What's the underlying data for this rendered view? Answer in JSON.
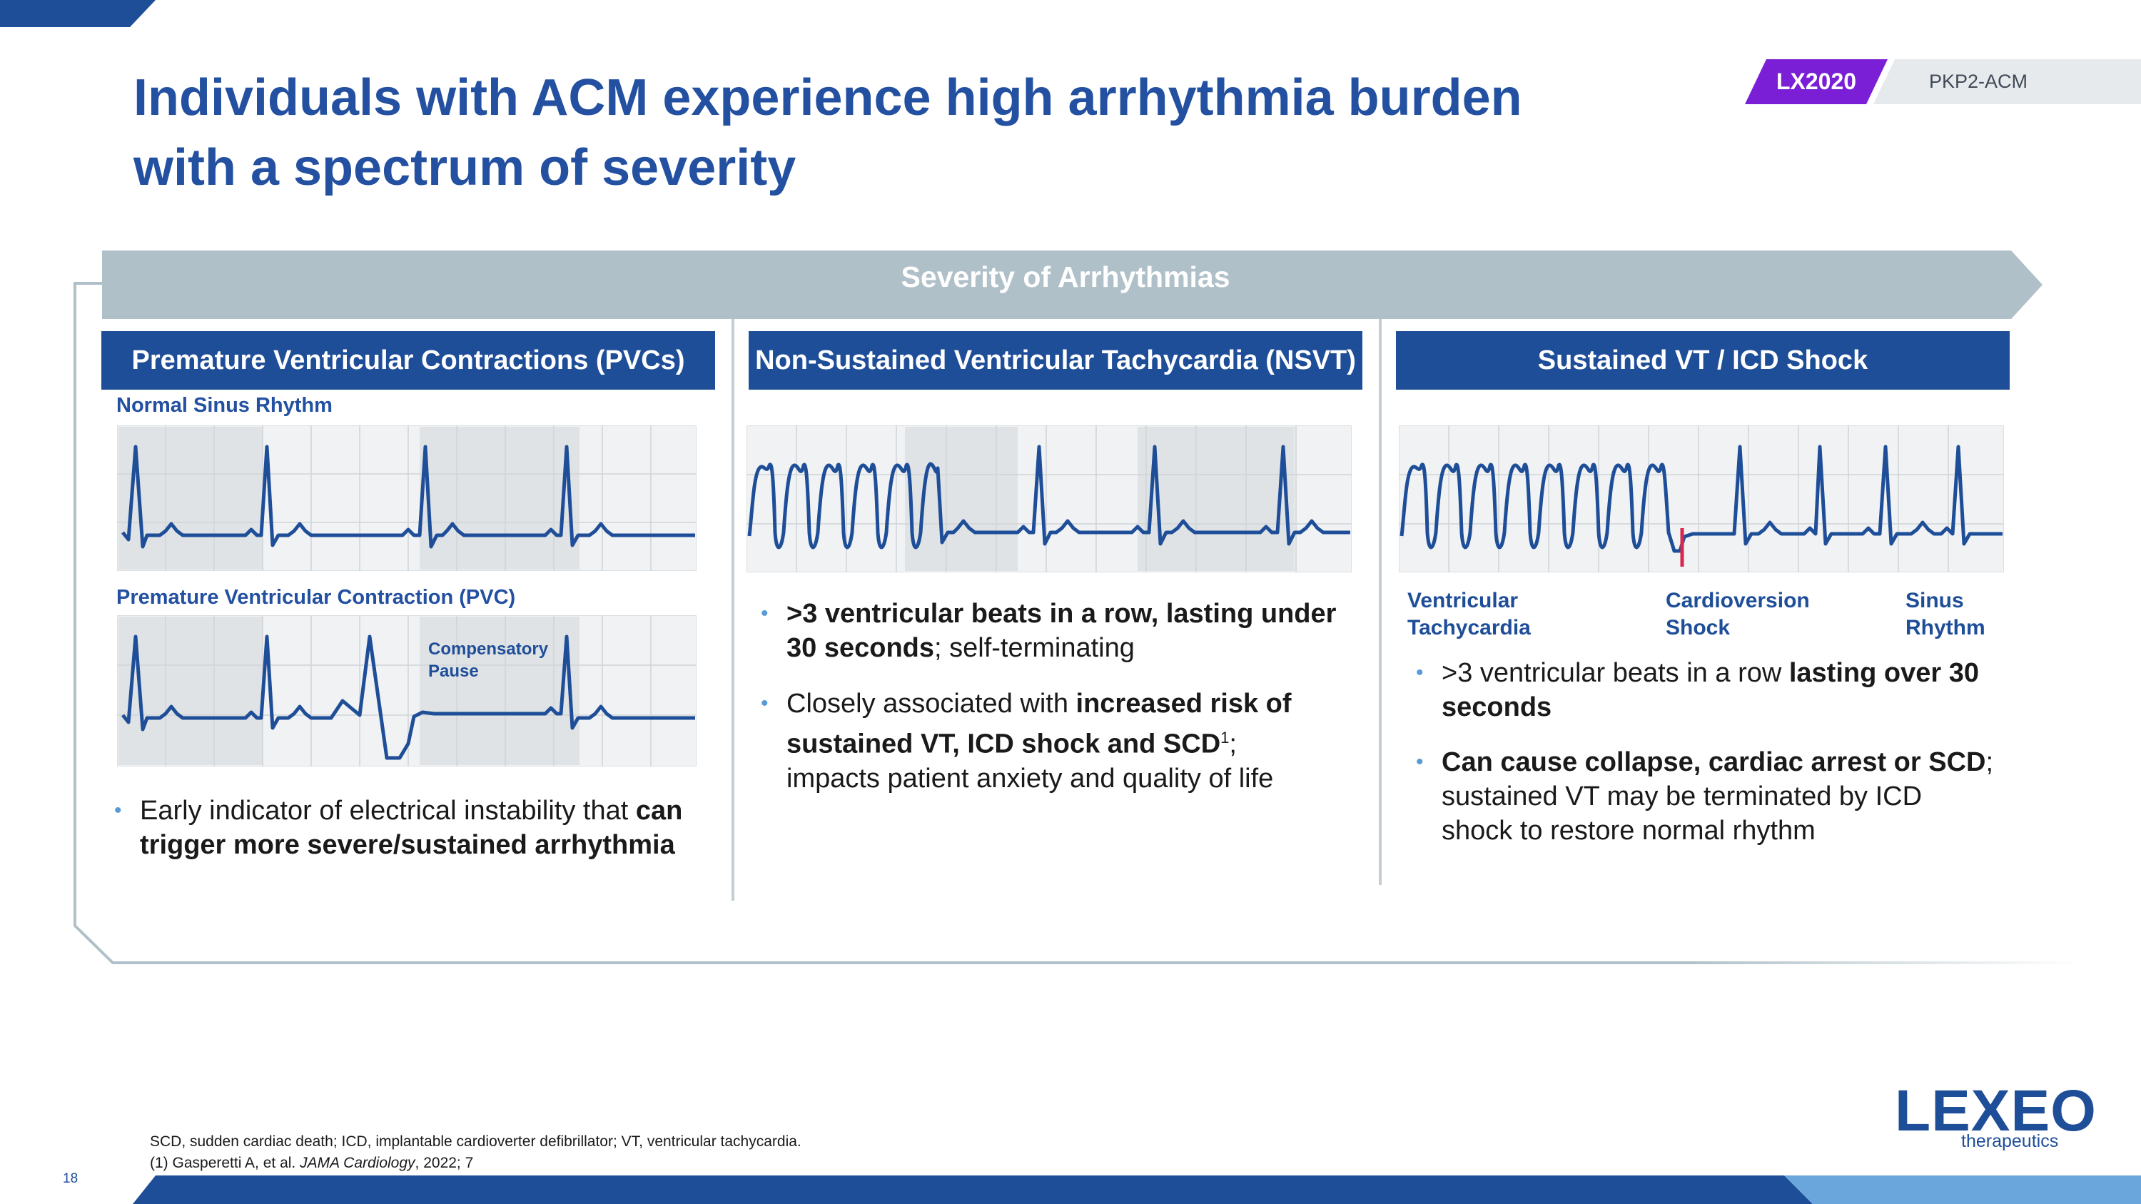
{
  "title_line1": "Individuals with ACM experience high arrhythmia burden",
  "title_line2": "with a spectrum of severity",
  "tag_program": "LX2020",
  "tag_indication": "PKP2-ACM",
  "banner": "Severity of Arrhythmias",
  "columns": [
    {
      "header": "Premature Ventricular Contractions (PVCs)",
      "strip1_label": "Normal Sinus Rhythm",
      "strip2_label": "Premature Ventricular Contraction (PVC)",
      "pause_label_1": "Compensatory",
      "pause_label_2": "Pause",
      "bullet": {
        "t1": "Early indicator of electrical instability that ",
        "b1": "can trigger more severe/sustained arrhythmia"
      }
    },
    {
      "header": "Non-Sustained Ventricular Tachycardia (NSVT)",
      "bullet1": {
        "b1": ">3 ventricular beats in a row, lasting under 30 seconds",
        "t1": "; self-terminating"
      },
      "bullet2": {
        "t1": "Closely associated with ",
        "b1": "increased risk of sustained VT, ICD shock and SCD",
        "sup": "1",
        "t2": "; impacts patient anxiety and quality of life"
      }
    },
    {
      "header": "Sustained VT / ICD Shock",
      "cap_vt_1": "Ventricular",
      "cap_vt_2": "Tachycardia",
      "cap_cv_1": "Cardioversion",
      "cap_cv_2": "Shock",
      "cap_sr_1": "Sinus",
      "cap_sr_2": "Rhythm",
      "bullet1": {
        "t1": ">3 ventricular beats in a row ",
        "b1": "lasting over 30 seconds"
      },
      "bullet2": {
        "b1": "Can cause collapse, cardiac arrest or SCD",
        "t1": "; sustained VT may be terminated by ICD shock to restore normal rhythm"
      }
    }
  ],
  "footnote_line1": "SCD, sudden cardiac death; ICD, implantable cardioverter defibrillator; VT, ventricular tachycardia.",
  "footnote_line2_a": "(1) Gasperetti A, et al. ",
  "footnote_line2_journal": "JAMA Cardiology",
  "footnote_line2_b": ", 2022; 7",
  "page_number": "18",
  "logo_name": "LEXEO",
  "logo_sub": "therapeutics",
  "colors": {
    "primary": "#1f4e99",
    "title": "#2350a0",
    "accent_purple": "#7a1fd6",
    "banner_gray": "#b0c0c8",
    "ecg_line": "#1f4e99",
    "shock_red": "#d6294d"
  }
}
